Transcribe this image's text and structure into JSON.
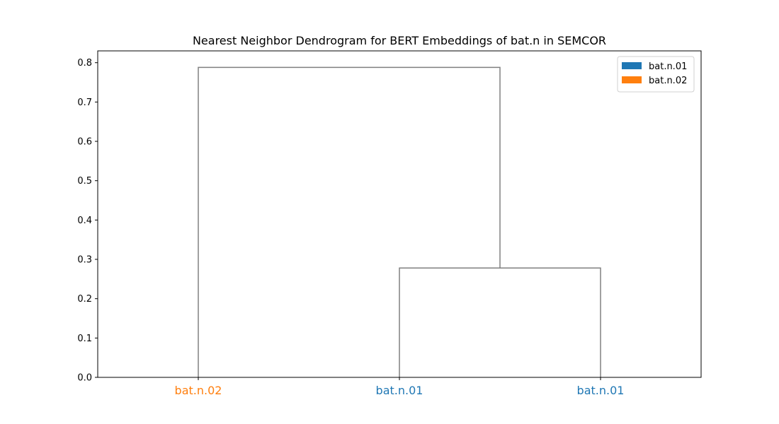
{
  "chart_data": {
    "type": "dendrogram",
    "title": "Nearest Neighbor Dendrogram for BERT Embeddings of bat.n in SEMCOR",
    "xlabel": "",
    "ylabel": "",
    "ylim": [
      0,
      0.83
    ],
    "yticks": [
      0.0,
      0.1,
      0.2,
      0.3,
      0.4,
      0.5,
      0.6,
      0.7,
      0.8
    ],
    "ytick_labels": [
      "0.0",
      "0.1",
      "0.2",
      "0.3",
      "0.4",
      "0.5",
      "0.6",
      "0.7",
      "0.8"
    ],
    "leaves": [
      {
        "label": "bat.n.02",
        "sense": "bat.n.02"
      },
      {
        "label": "bat.n.01",
        "sense": "bat.n.01"
      },
      {
        "label": "bat.n.01",
        "sense": "bat.n.01"
      }
    ],
    "merges": [
      {
        "children": [
          1,
          2
        ],
        "height": 0.278
      },
      {
        "children": [
          0,
          "m0"
        ],
        "height": 0.788
      }
    ],
    "link_color": "#808080",
    "legend": {
      "placement": "top-right",
      "entries": [
        {
          "label": "bat.n.01",
          "color": "#1f77b4"
        },
        {
          "label": "bat.n.02",
          "color": "#ff7f0e"
        }
      ]
    },
    "grid": false
  }
}
